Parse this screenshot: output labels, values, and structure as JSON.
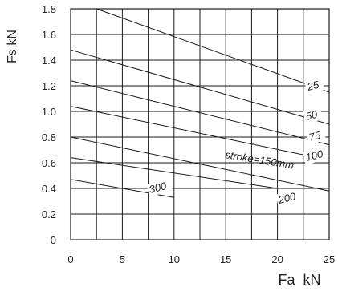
{
  "chart_data": {
    "type": "line",
    "title": "",
    "xlabel": "Fa  kN",
    "ylabel": "Fs  kN",
    "xlim": [
      0,
      25
    ],
    "ylim": [
      0,
      1.8
    ],
    "x_ticks": [
      "0",
      "5",
      "10",
      "15",
      "20",
      "25"
    ],
    "y_ticks": [
      "0",
      "0.2",
      "0.4",
      "0.6",
      "0.8",
      "1.0",
      "1.2",
      "1.4",
      "1.6",
      "1.8"
    ],
    "grid": true,
    "series": [
      {
        "name": "25",
        "label": "25",
        "x": [
          2.5,
          25
        ],
        "y": [
          1.8,
          1.15
        ]
      },
      {
        "name": "50",
        "label": "50",
        "x": [
          0,
          25
        ],
        "y": [
          1.48,
          0.9
        ]
      },
      {
        "name": "75",
        "label": "75",
        "x": [
          0,
          25
        ],
        "y": [
          1.24,
          0.74
        ]
      },
      {
        "name": "100",
        "label": "100",
        "x": [
          0,
          25
        ],
        "y": [
          1.04,
          0.62
        ]
      },
      {
        "name": "150",
        "label": "stroke=150mm",
        "x": [
          0,
          25
        ],
        "y": [
          0.8,
          0.38
        ]
      },
      {
        "name": "200",
        "label": "200",
        "x": [
          0,
          20
        ],
        "y": [
          0.64,
          0.4
        ]
      },
      {
        "name": "300",
        "label": "300",
        "x": [
          0,
          10
        ],
        "y": [
          0.47,
          0.33
        ]
      }
    ]
  }
}
